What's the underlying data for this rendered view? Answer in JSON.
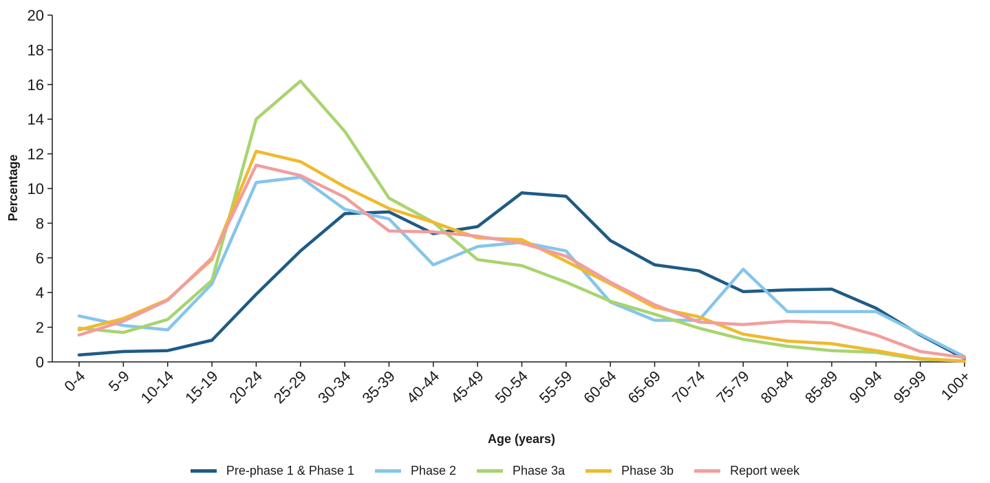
{
  "chart_data": {
    "type": "line",
    "title": "",
    "xlabel": "Age (years)",
    "ylabel": "Percentage",
    "ylim": [
      0,
      20
    ],
    "yticks": [
      "0",
      "2",
      "4",
      "6",
      "8",
      "10",
      "12",
      "14",
      "16",
      "18",
      "20"
    ],
    "grid": false,
    "legend_position": "bottom",
    "categories": [
      "0-4",
      "5-9",
      "10-14",
      "15-19",
      "20-24",
      "25-29",
      "30-34",
      "35-39",
      "40-44",
      "45-49",
      "50-54",
      "55-59",
      "60-64",
      "65-69",
      "70-74",
      "75-79",
      "80-84",
      "85-89",
      "90-94",
      "95-99",
      "100+"
    ],
    "series": [
      {
        "name": "Pre-phase 1 & Phase 1",
        "color": "#1f5b85",
        "values": [
          0.4,
          0.6,
          0.65,
          1.25,
          3.9,
          6.4,
          8.55,
          8.65,
          7.4,
          7.8,
          9.75,
          9.55,
          7.0,
          5.6,
          5.25,
          4.05,
          4.15,
          4.2,
          3.1,
          1.55,
          0.2
        ]
      },
      {
        "name": "Phase 2",
        "color": "#86c5ea",
        "values": [
          2.65,
          2.1,
          1.85,
          4.5,
          10.35,
          10.65,
          8.8,
          8.25,
          5.6,
          6.65,
          6.9,
          6.4,
          3.45,
          2.4,
          2.4,
          5.35,
          2.9,
          2.9,
          2.9,
          1.6,
          0.3
        ]
      },
      {
        "name": "Phase 3a",
        "color": "#a8d46f",
        "values": [
          1.95,
          1.7,
          2.45,
          4.7,
          14.0,
          16.2,
          13.3,
          9.45,
          8.05,
          5.9,
          5.55,
          4.6,
          3.5,
          2.75,
          1.95,
          1.3,
          0.9,
          0.65,
          0.55,
          0.15,
          0.05
        ]
      },
      {
        "name": "Phase 3b",
        "color": "#f0b92d",
        "values": [
          1.85,
          2.5,
          3.6,
          5.9,
          12.15,
          11.55,
          10.1,
          8.85,
          8.05,
          7.15,
          7.05,
          5.8,
          4.5,
          3.15,
          2.6,
          1.6,
          1.2,
          1.05,
          0.65,
          0.2,
          0.05
        ]
      },
      {
        "name": "Report week",
        "color": "#f19e9e",
        "values": [
          1.55,
          2.35,
          3.55,
          6.0,
          11.35,
          10.75,
          9.5,
          7.55,
          7.5,
          7.25,
          6.85,
          6.1,
          4.6,
          3.3,
          2.3,
          2.15,
          2.35,
          2.25,
          1.55,
          0.6,
          0.25
        ]
      }
    ]
  }
}
